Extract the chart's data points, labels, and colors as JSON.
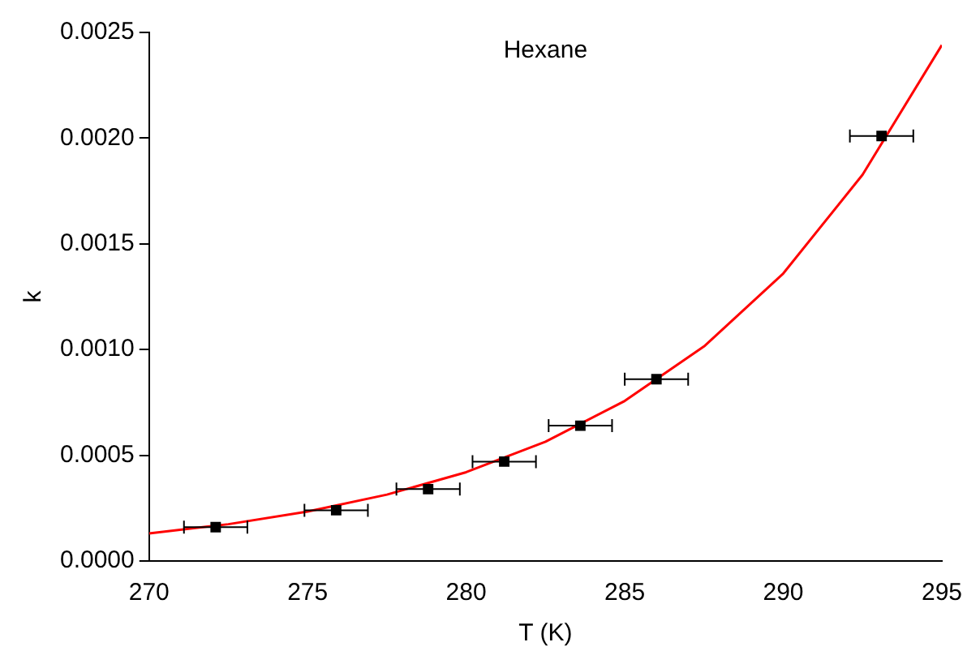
{
  "chart_data": {
    "type": "scatter",
    "xlabel": "T (K)",
    "ylabel": "k",
    "annotations": [
      "Hexane"
    ],
    "xlim": [
      270,
      295
    ],
    "xticks": [
      270,
      275,
      280,
      285,
      290,
      295
    ],
    "ylim": [
      0,
      0.0025
    ],
    "yticks": [
      {
        "value": 0,
        "label": "0.0000"
      },
      {
        "value": 0.0005,
        "label": "0.0005"
      },
      {
        "value": 0.001,
        "label": "0.0010"
      },
      {
        "value": 0.0015,
        "label": "0.0015"
      },
      {
        "value": 0.002,
        "label": "0.0020"
      },
      {
        "value": 0.0025,
        "label": "0.0025"
      }
    ],
    "grid": false,
    "legend": false,
    "series": [
      {
        "color": "#000000",
        "marker": "square",
        "x": [
          272.1,
          275.9,
          278.8,
          281.2,
          283.6,
          286.0,
          293.1
        ],
        "values": [
          0.00016,
          0.00024,
          0.00034,
          0.00047,
          0.00064,
          0.00086,
          0.00201
        ],
        "xerrors": [
          1,
          1,
          1,
          1,
          1,
          1,
          1
        ]
      },
      {
        "type": "line",
        "color": "#ff0000",
        "marker": "none",
        "line_style": "solid",
        "x": [
          270,
          272.5,
          275,
          277.5,
          280,
          282.5,
          285,
          287.5,
          290,
          292.5,
          295
        ],
        "values": [
          0.00013,
          0.000174,
          0.000234,
          0.000314,
          0.00042,
          0.000564,
          0.000757,
          0.001015,
          0.00136,
          0.001827,
          0.00244
        ]
      }
    ]
  }
}
